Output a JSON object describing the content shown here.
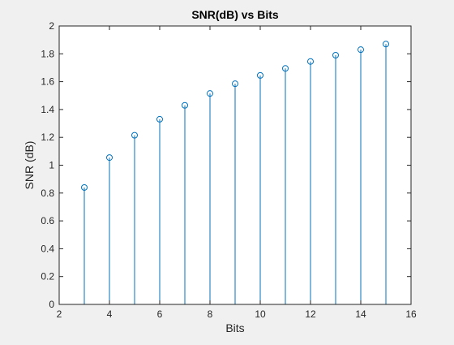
{
  "chart_data": {
    "type": "stem",
    "title": "SNR(dB) vs Bits",
    "xlabel": "Bits",
    "ylabel": "SNR (dB)",
    "xlim": [
      2,
      16
    ],
    "ylim": [
      0,
      2
    ],
    "xticks": [
      2,
      4,
      6,
      8,
      10,
      12,
      14,
      16
    ],
    "yticks": [
      0,
      0.2,
      0.4,
      0.6,
      0.8,
      1,
      1.2,
      1.4,
      1.6,
      1.8,
      2
    ],
    "grid": false,
    "series": [
      {
        "x": [
          3,
          4,
          5,
          6,
          7,
          8,
          9,
          10,
          11,
          12,
          13,
          14,
          15
        ],
        "values": [
          0.84,
          1.055,
          1.215,
          1.33,
          1.43,
          1.515,
          1.585,
          1.645,
          1.695,
          1.745,
          1.79,
          1.83,
          1.87
        ]
      }
    ],
    "colors": {
      "series": "#0072bd",
      "axes": "#262626",
      "plot_bg": "#ffffff",
      "figure_bg": "#f0f0f0"
    }
  }
}
